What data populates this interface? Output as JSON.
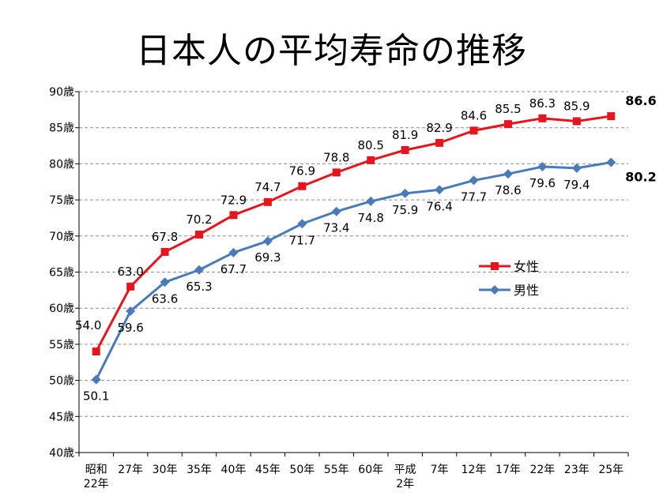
{
  "chart_data": {
    "type": "line",
    "title": "日本人の平均寿命の推移",
    "categories": [
      [
        "昭和",
        "22年"
      ],
      [
        "27年"
      ],
      [
        "30年"
      ],
      [
        "35年"
      ],
      [
        "40年"
      ],
      [
        "45年"
      ],
      [
        "50年"
      ],
      [
        "55年"
      ],
      [
        "60年"
      ],
      [
        "平成",
        "2年"
      ],
      [
        "7年"
      ],
      [
        "12年"
      ],
      [
        "17年"
      ],
      [
        "22年"
      ],
      [
        "23年"
      ],
      [
        "25年"
      ]
    ],
    "y_ticks": [
      "40歳",
      "45歳",
      "50歳",
      "55歳",
      "60歳",
      "65歳",
      "70歳",
      "75歳",
      "80歳",
      "85歳",
      "90歳"
    ],
    "ylim": [
      40,
      90
    ],
    "grid": true,
    "legend_position": "right",
    "series": [
      {
        "name": "女性",
        "color": "#e8141c",
        "marker": "square",
        "values": [
          54.0,
          63.0,
          67.8,
          70.2,
          72.9,
          74.7,
          76.9,
          78.8,
          80.5,
          81.9,
          82.9,
          84.6,
          85.5,
          86.3,
          85.9,
          86.6
        ],
        "labels": [
          "54.0",
          "63.0",
          "67.8",
          "70.2",
          "72.9",
          "74.7",
          "76.9",
          "78.8",
          "80.5",
          "81.9",
          "82.9",
          "84.6",
          "85.5",
          "86.3",
          "85.9",
          "86.6"
        ]
      },
      {
        "name": "男性",
        "color": "#4a7ab8",
        "marker": "diamond",
        "values": [
          50.1,
          59.6,
          63.6,
          65.3,
          67.7,
          69.3,
          71.7,
          73.4,
          74.8,
          75.9,
          76.4,
          77.7,
          78.6,
          79.6,
          79.4,
          80.2
        ],
        "labels": [
          "50.1",
          "59.6",
          "63.6",
          "65.3",
          "67.7",
          "69.3",
          "71.7",
          "73.4",
          "74.8",
          "75.9",
          "76.4",
          "77.7",
          "78.6",
          "79.6",
          "79.4",
          "80.2"
        ]
      }
    ]
  }
}
